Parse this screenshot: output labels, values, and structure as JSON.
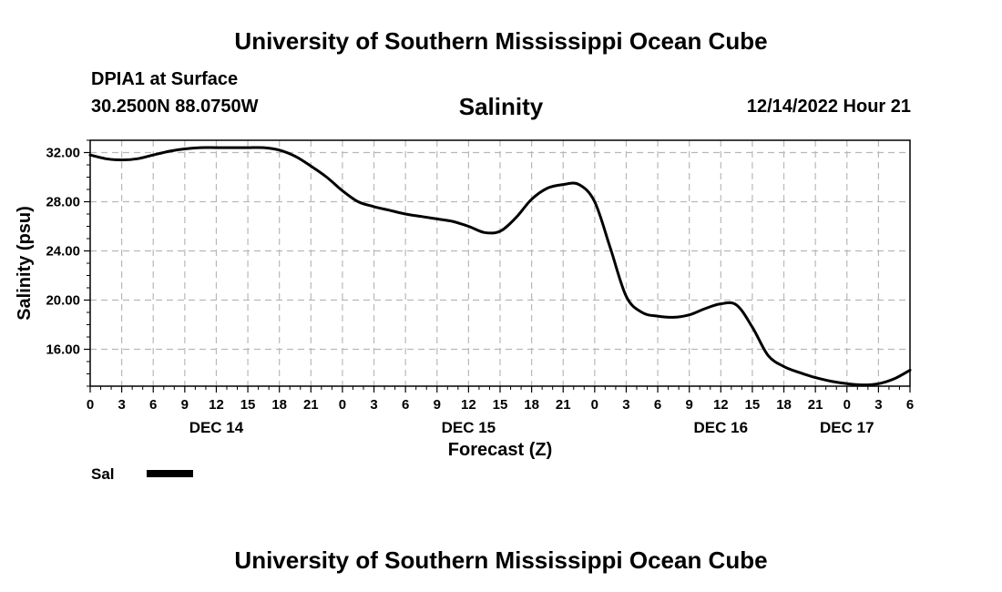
{
  "header": {
    "title": "University of Southern Mississippi Ocean Cube",
    "station": "DPIA1 at Surface",
    "coords": "30.2500N  88.0750W",
    "variable": "Salinity",
    "timestamp": "12/14/2022 Hour 21",
    "footer_title": "University of Southern Mississippi Ocean Cube"
  },
  "chart_data": {
    "type": "line",
    "title": "Salinity",
    "xlabel": "Forecast (Z)",
    "ylabel": "Salinity (psu)",
    "xlim": [
      0,
      78
    ],
    "ylim": [
      13,
      33
    ],
    "grid": true,
    "x_tick_labels": [
      "0",
      "3",
      "6",
      "9",
      "12",
      "15",
      "18",
      "21",
      "0",
      "3",
      "6",
      "9",
      "12",
      "15",
      "18",
      "21",
      "0",
      "3",
      "6",
      "9",
      "12",
      "15",
      "18",
      "21",
      "0",
      "3",
      "6"
    ],
    "y_ticks": [
      16,
      20,
      24,
      28,
      32
    ],
    "y_tick_labels": [
      "16.00",
      "20.00",
      "24.00",
      "28.00",
      "32.00"
    ],
    "day_labels": [
      {
        "x": 12,
        "label": "DEC 14"
      },
      {
        "x": 36,
        "label": "DEC 15"
      },
      {
        "x": 60,
        "label": "DEC 16"
      },
      {
        "x": 72,
        "label": "DEC 17"
      }
    ],
    "legend": [
      {
        "name": "Sal",
        "color": "#000000"
      }
    ],
    "series": [
      {
        "name": "Sal",
        "color": "#000000",
        "x": [
          0,
          1.5,
          3,
          4.5,
          6,
          7.5,
          9,
          10.5,
          12,
          13.5,
          15,
          16.5,
          18,
          19.5,
          21,
          22.5,
          24,
          25.5,
          27,
          28.5,
          30,
          31.5,
          33,
          34.5,
          36,
          37.5,
          39,
          40.5,
          42,
          43.5,
          45,
          46.5,
          48,
          49.5,
          51,
          52.5,
          54,
          55.5,
          57,
          58.5,
          60,
          61.5,
          63,
          64.5,
          66,
          67.5,
          69,
          70.5,
          72,
          73.5,
          75,
          76.5,
          78
        ],
        "y": [
          31.8,
          31.5,
          31.4,
          31.5,
          31.8,
          32.1,
          32.3,
          32.4,
          32.4,
          32.4,
          32.4,
          32.4,
          32.2,
          31.7,
          30.9,
          30.0,
          28.9,
          28.0,
          27.6,
          27.3,
          27.0,
          26.8,
          26.6,
          26.4,
          26.0,
          25.5,
          25.6,
          26.7,
          28.2,
          29.1,
          29.4,
          29.4,
          28.0,
          24.2,
          20.3,
          19.0,
          18.7,
          18.6,
          18.8,
          19.3,
          19.7,
          19.6,
          17.8,
          15.5,
          14.6,
          14.1,
          13.7,
          13.4,
          13.2,
          13.1,
          13.2,
          13.6,
          14.3
        ]
      }
    ]
  }
}
